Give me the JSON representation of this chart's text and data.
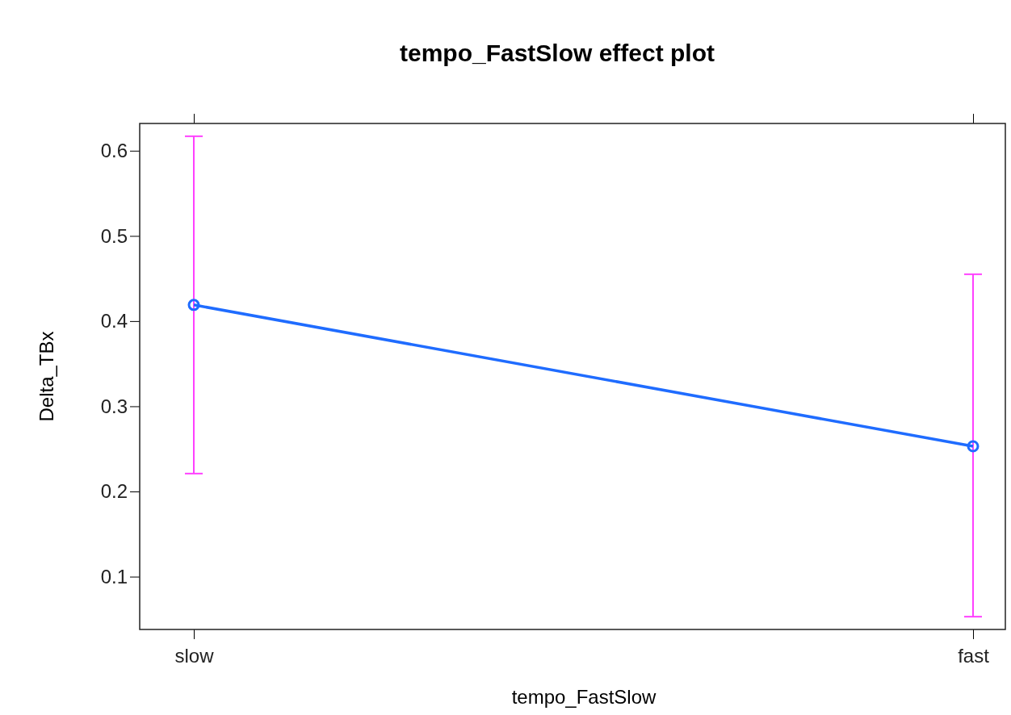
{
  "chart_data": {
    "type": "line",
    "title": "tempo_FastSlow effect plot",
    "xlabel": "tempo_FastSlow",
    "ylabel": "Delta_TBx",
    "categories": [
      "slow",
      "fast"
    ],
    "series": [
      {
        "color": "#1f6cff",
        "values": [
          0.419,
          0.253
        ],
        "errors": [
          [
            0.221,
            0.617
          ],
          [
            0.053,
            0.455
          ]
        ]
      }
    ],
    "ylim": [
      0.038,
      0.632
    ],
    "yticks": [
      0.1,
      0.2,
      0.3,
      0.4,
      0.5,
      0.6
    ],
    "marker": "circle",
    "line_style": "solid"
  }
}
